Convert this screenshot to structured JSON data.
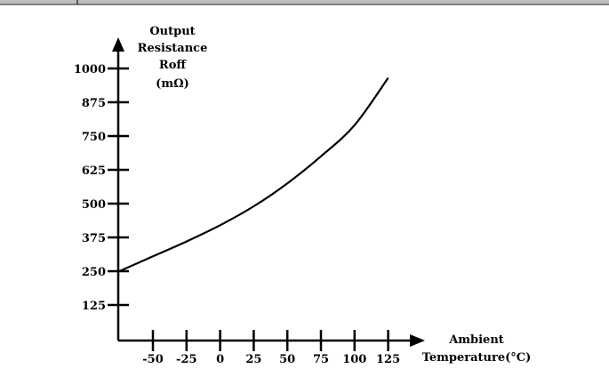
{
  "chart_data": {
    "type": "line",
    "title": "",
    "ylabel_lines": [
      "Output",
      "Resistance",
      "Roff",
      "(mΩ)"
    ],
    "xlabel_lines": [
      "Ambient",
      "Temperature(°C)"
    ],
    "x_ticks": [
      -50,
      -25,
      0,
      25,
      50,
      75,
      100,
      125
    ],
    "x_tick_labels": [
      "-50",
      "-25",
      "0",
      "25",
      "50",
      "75",
      "100",
      "125"
    ],
    "y_ticks": [
      125,
      250,
      375,
      500,
      625,
      750,
      875,
      1000
    ],
    "y_tick_labels": [
      "125",
      "250",
      "375",
      "500",
      "625",
      "750",
      "875",
      "1000"
    ],
    "xlim": [
      -75,
      150
    ],
    "ylim": [
      0,
      1100
    ],
    "grid": false,
    "series": [
      {
        "x": [
          -75,
          -50,
          -25,
          0,
          25,
          50,
          75,
          100,
          125
        ],
        "y": [
          250,
          305,
          360,
          420,
          490,
          575,
          675,
          790,
          965
        ]
      }
    ],
    "colors": {
      "axis": "#000000",
      "line": "#000000"
    }
  }
}
